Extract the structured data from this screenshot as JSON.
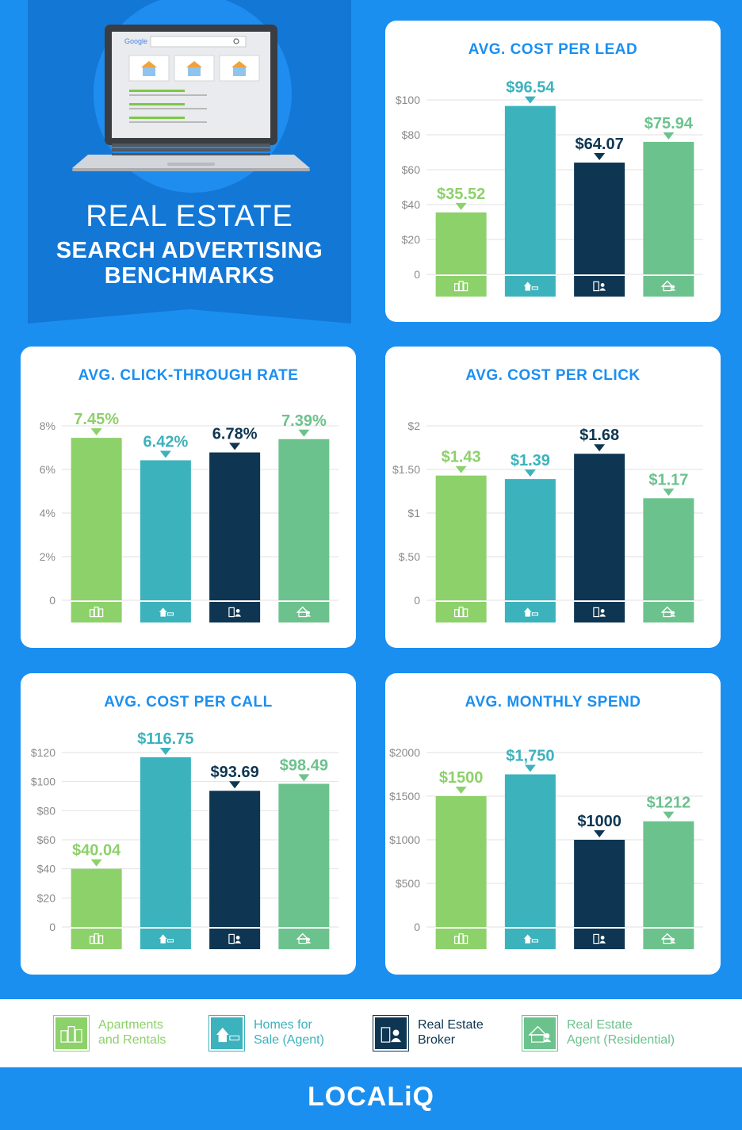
{
  "hero": {
    "search_logo": "Google",
    "title_line1": "REAL ESTATE",
    "title_line2": "SEARCH ADVERTISING",
    "title_line3": "BENCHMARKS"
  },
  "colors": {
    "apartments": "#8dd16a",
    "homes": "#3cb2bd",
    "broker": "#0e3652",
    "agent": "#6cc28d",
    "title_blue": "#1b8ff0",
    "axis_text": "#8a8a8a",
    "grid": "#e2e2e2"
  },
  "legend": [
    {
      "icon": "apartments-icon",
      "label": "Apartments and Rentals",
      "line1": "Apartments",
      "line2": "and Rentals",
      "color": "#8dd16a"
    },
    {
      "icon": "home-for-sale-icon",
      "label": "Homes for Sale (Agent)",
      "line1": "Homes for",
      "line2": "Sale (Agent)",
      "color": "#3cb2bd"
    },
    {
      "icon": "broker-icon",
      "label": "Real Estate Broker",
      "line1": "Real Estate",
      "line2": "Broker",
      "color": "#0e3652"
    },
    {
      "icon": "agent-icon",
      "label": "Real Estate Agent (Residential)",
      "line1": "Real Estate",
      "line2": "Agent (Residential)",
      "color": "#6cc28d"
    }
  ],
  "footer": {
    "brand": "LOCALiQ"
  },
  "chart_data": [
    {
      "id": "cpl",
      "type": "bar",
      "title": "AVG. COST PER LEAD",
      "categories": [
        "Apartments and Rentals",
        "Homes for Sale (Agent)",
        "Real Estate Broker",
        "Real Estate Agent (Residential)"
      ],
      "values": [
        35.52,
        96.54,
        64.07,
        75.94
      ],
      "value_labels": [
        "$35.52",
        "$96.54",
        "$64.07",
        "$75.94"
      ],
      "yticks": [
        0,
        20,
        40,
        60,
        80,
        100
      ],
      "ytick_labels": [
        "0",
        "$20",
        "$40",
        "$60",
        "$80",
        "$100"
      ],
      "ylim": [
        0,
        100
      ],
      "grid": true
    },
    {
      "id": "ctr",
      "type": "bar",
      "title": "AVG. CLICK-THROUGH RATE",
      "categories": [
        "Apartments and Rentals",
        "Homes for Sale (Agent)",
        "Real Estate Broker",
        "Real Estate Agent (Residential)"
      ],
      "values": [
        7.45,
        6.42,
        6.78,
        7.39
      ],
      "value_labels": [
        "7.45%",
        "6.42%",
        "6.78%",
        "7.39%"
      ],
      "yticks": [
        0,
        2,
        4,
        6,
        8
      ],
      "ytick_labels": [
        "0",
        "2%",
        "4%",
        "6%",
        "8%"
      ],
      "ylim": [
        0,
        8
      ],
      "grid": true
    },
    {
      "id": "cpc",
      "type": "bar",
      "title": "AVG. COST PER CLICK",
      "categories": [
        "Apartments and Rentals",
        "Homes for Sale (Agent)",
        "Real Estate Broker",
        "Real Estate Agent (Residential)"
      ],
      "values": [
        1.43,
        1.39,
        1.68,
        1.17
      ],
      "value_labels": [
        "$1.43",
        "$1.39",
        "$1.68",
        "$1.17"
      ],
      "yticks": [
        0,
        0.5,
        1,
        1.5,
        2
      ],
      "ytick_labels": [
        "0",
        "$.50",
        "$1",
        "$1.50",
        "$2"
      ],
      "ylim": [
        0,
        2
      ],
      "grid": true
    },
    {
      "id": "cpcall",
      "type": "bar",
      "title": "AVG. COST PER CALL",
      "categories": [
        "Apartments and Rentals",
        "Homes for Sale (Agent)",
        "Real Estate Broker",
        "Real Estate Agent (Residential)"
      ],
      "values": [
        40.04,
        116.75,
        93.69,
        98.49
      ],
      "value_labels": [
        "$40.04",
        "$116.75",
        "$93.69",
        "$98.49"
      ],
      "yticks": [
        0,
        20,
        40,
        60,
        80,
        100,
        120
      ],
      "ytick_labels": [
        "0",
        "$20",
        "$40",
        "$60",
        "$80",
        "$100",
        "$120"
      ],
      "ylim": [
        0,
        120
      ],
      "grid": true
    },
    {
      "id": "spend",
      "type": "bar",
      "title": "AVG. MONTHLY SPEND",
      "categories": [
        "Apartments and Rentals",
        "Homes for Sale (Agent)",
        "Real Estate Broker",
        "Real Estate Agent (Residential)"
      ],
      "values": [
        1500,
        1750,
        1000,
        1212
      ],
      "value_labels": [
        "$1500",
        "$1,750",
        "$1000",
        "$1212"
      ],
      "yticks": [
        0,
        500,
        1000,
        1500,
        2000
      ],
      "ytick_labels": [
        "0",
        "$500",
        "$1000",
        "$1500",
        "$2000"
      ],
      "ylim": [
        0,
        2000
      ],
      "grid": true
    }
  ]
}
